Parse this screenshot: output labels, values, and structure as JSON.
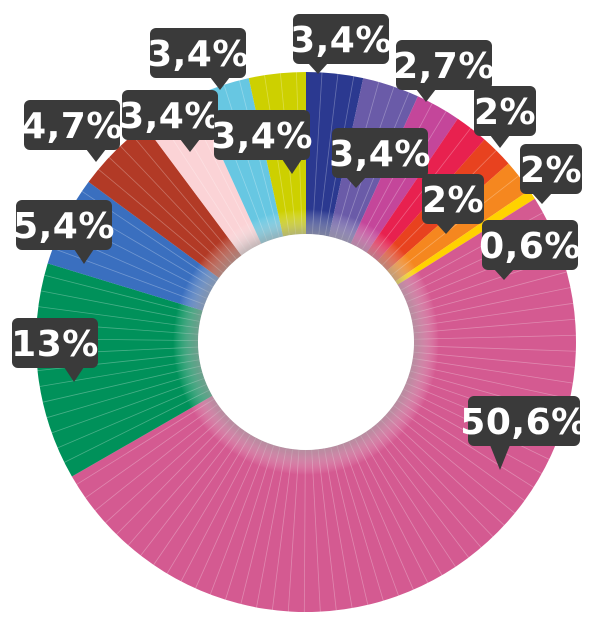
{
  "chart_data": {
    "type": "pie",
    "variant": "donut",
    "slices": [
      {
        "label": "3,4%",
        "value": 3.4,
        "color": "#2b3990"
      },
      {
        "label": "3,4%",
        "value": 3.4,
        "color": "#6a5ba8"
      },
      {
        "label": "2,7%",
        "value": 2.7,
        "color": "#c4469a"
      },
      {
        "label": "2%",
        "value": 2.0,
        "color": "#e8214f"
      },
      {
        "label": "2%",
        "value": 2.0,
        "color": "#e8421f"
      },
      {
        "label": "2%",
        "value": 2.0,
        "color": "#f5871f"
      },
      {
        "label": "0,6%",
        "value": 0.6,
        "color": "#ffd200"
      },
      {
        "label": "50,6%",
        "value": 50.6,
        "color": "#d45a91"
      },
      {
        "label": "13%",
        "value": 13.0,
        "color": "#00915a"
      },
      {
        "label": "5,4%",
        "value": 5.4,
        "color": "#3a6fbf"
      },
      {
        "label": "4,7%",
        "value": 4.7,
        "color": "#b23a26"
      },
      {
        "label": "3,4%",
        "value": 3.4,
        "color": "#fbd3d6"
      },
      {
        "label": "3,4%",
        "value": 3.4,
        "color": "#67c7e2"
      },
      {
        "label": "3,4%",
        "value": 3.4,
        "color": "#cdd000"
      }
    ],
    "legend": "none",
    "start_angle_deg": 0
  }
}
